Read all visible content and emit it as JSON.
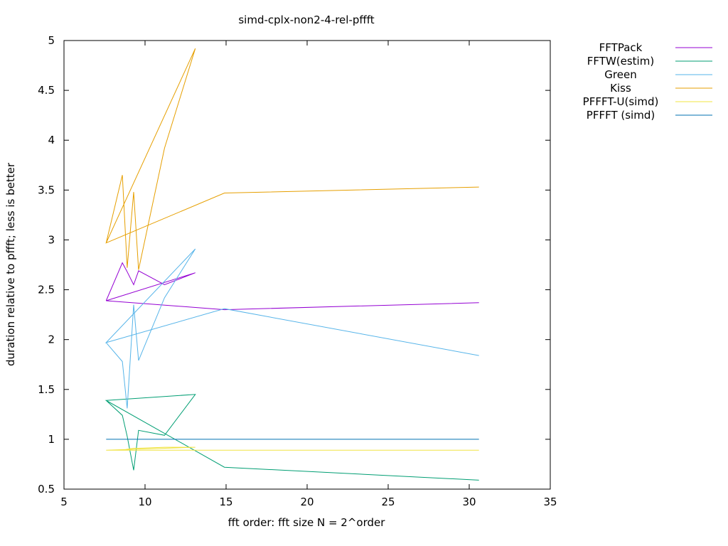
{
  "chart_data": {
    "type": "line",
    "title": "simd-cplx-non2-4-rel-pffft",
    "xlabel": "fft order: fft size N = 2^order",
    "ylabel": "duration relative to pffft; less is better",
    "xlim": [
      5,
      35
    ],
    "ylim": [
      0.5,
      5
    ],
    "xticks": [
      5,
      10,
      15,
      20,
      25,
      30,
      35
    ],
    "yticks": [
      0.5,
      1,
      1.5,
      2,
      2.5,
      3,
      3.5,
      4,
      4.5,
      5
    ],
    "xtick_labels": [
      "5",
      "10",
      "15",
      "20",
      "25",
      "30",
      "35"
    ],
    "ytick_labels": [
      "0.5",
      "1",
      "1.5",
      "2",
      "2.5",
      "3",
      "3.5",
      "4",
      "4.5",
      "5"
    ],
    "grid": false,
    "legend_position": "top-right outside",
    "series": [
      {
        "name": "FFTPack",
        "color": "#9400d3",
        "points": [
          [
            7.6,
            2.39
          ],
          [
            8.6,
            2.77
          ],
          [
            8.9,
            2.68
          ],
          [
            9.3,
            2.55
          ],
          [
            9.6,
            2.69
          ],
          [
            11.2,
            2.55
          ],
          [
            13.1,
            2.67
          ],
          [
            7.6,
            2.39
          ],
          [
            14.9,
            2.3
          ],
          [
            30.6,
            2.37
          ]
        ]
      },
      {
        "name": "FFTW(estim)",
        "color": "#009e73",
        "points": [
          [
            7.6,
            1.39
          ],
          [
            8.6,
            1.24
          ],
          [
            8.9,
            1.03
          ],
          [
            9.3,
            0.69
          ],
          [
            9.6,
            1.09
          ],
          [
            11.2,
            1.04
          ],
          [
            13.1,
            1.45
          ],
          [
            7.6,
            1.39
          ],
          [
            14.9,
            0.72
          ],
          [
            30.6,
            0.59
          ]
        ]
      },
      {
        "name": "Green",
        "color": "#56b4e9",
        "points": [
          [
            7.6,
            1.97
          ],
          [
            8.6,
            1.78
          ],
          [
            8.9,
            1.31
          ],
          [
            9.3,
            2.35
          ],
          [
            9.6,
            1.79
          ],
          [
            11.2,
            2.42
          ],
          [
            13.1,
            2.91
          ],
          [
            7.6,
            1.97
          ],
          [
            14.9,
            2.31
          ],
          [
            30.6,
            1.84
          ]
        ]
      },
      {
        "name": "Kiss",
        "color": "#e69f00",
        "points": [
          [
            7.6,
            2.97
          ],
          [
            8.6,
            3.65
          ],
          [
            8.9,
            2.72
          ],
          [
            9.3,
            3.48
          ],
          [
            9.6,
            2.7
          ],
          [
            11.2,
            3.92
          ],
          [
            13.1,
            4.92
          ],
          [
            7.6,
            2.97
          ],
          [
            14.9,
            3.47
          ],
          [
            30.6,
            3.53
          ]
        ]
      },
      {
        "name": "PFFFT-U(simd)",
        "color": "#f0e442",
        "points": [
          [
            7.6,
            0.89
          ],
          [
            8.6,
            0.89
          ],
          [
            8.9,
            0.9
          ],
          [
            9.3,
            0.91
          ],
          [
            9.6,
            0.91
          ],
          [
            11.2,
            0.92
          ],
          [
            13.1,
            0.92
          ],
          [
            7.6,
            0.89
          ],
          [
            14.9,
            0.89
          ],
          [
            30.6,
            0.89
          ]
        ]
      },
      {
        "name": "PFFFT (simd)",
        "color": "#0072b2",
        "points": [
          [
            7.6,
            1.0
          ],
          [
            8.6,
            1.0
          ],
          [
            8.9,
            1.0
          ],
          [
            9.3,
            1.0
          ],
          [
            9.6,
            1.0
          ],
          [
            11.2,
            1.0
          ],
          [
            13.1,
            1.0
          ],
          [
            7.6,
            1.0
          ],
          [
            14.9,
            1.0
          ],
          [
            30.6,
            1.0
          ]
        ]
      }
    ]
  }
}
